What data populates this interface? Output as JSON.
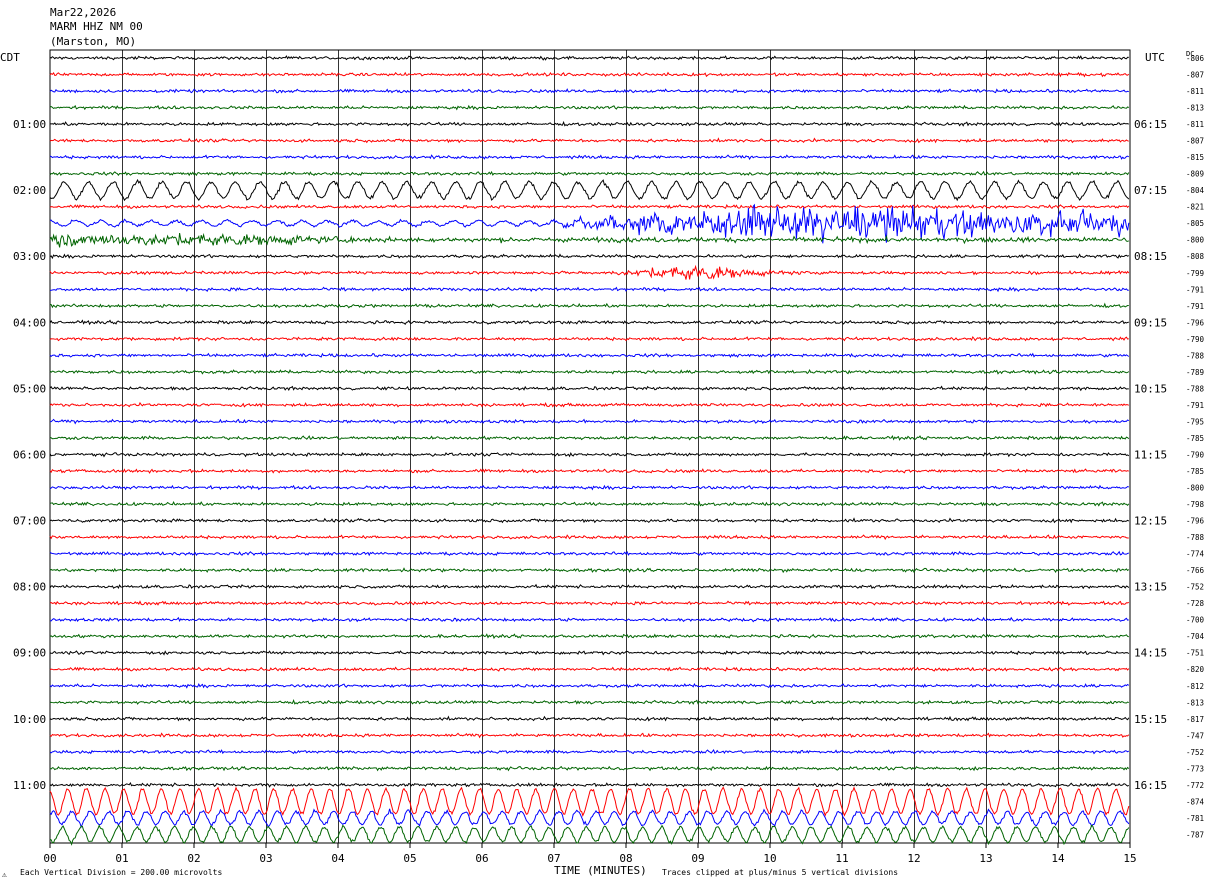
{
  "header": {
    "date": "Mar22,2026",
    "station": "MARM HHZ NM 00",
    "location": "(Marston, MO)"
  },
  "left_zone": "CDT",
  "right_zone": "UTC",
  "dc_label": "DC",
  "footer": {
    "scale_mark": "⚠",
    "scale_text": "Each Vertical Division =  200.00 microvolts",
    "xlabel": "TIME (MINUTES)",
    "clip_note": "Traces clipped at plus/minus 5 vertical divisions"
  },
  "colors": {
    "cycle": [
      "#000000",
      "#ff0000",
      "#0000ff",
      "#006400"
    ],
    "grid": "#000000",
    "background": "#ffffff"
  },
  "chart_data": {
    "type": "line",
    "title": "MARM HHZ NM 00",
    "xlabel": "TIME (MINUTES)",
    "xlim": [
      0,
      15
    ],
    "x_ticks": [
      "00",
      "01",
      "02",
      "03",
      "04",
      "05",
      "06",
      "07",
      "08",
      "09",
      "10",
      "11",
      "12",
      "13",
      "14",
      "15"
    ],
    "grid": "vertical every minute",
    "traces_per_hour": 4,
    "trace_duration_minutes": 15,
    "left_hour_labels": [
      "01:00",
      "02:00",
      "03:00",
      "04:00",
      "05:00",
      "06:00",
      "07:00",
      "08:00",
      "09:00",
      "10:00",
      "11:00"
    ],
    "right_hour_labels": [
      "06:15",
      "07:15",
      "08:15",
      "09:15",
      "10:15",
      "11:15",
      "12:15",
      "13:15",
      "14:15",
      "15:15",
      "16:15"
    ],
    "dc_offsets": [
      -806,
      -807,
      -811,
      -813,
      -811,
      -807,
      -815,
      -809,
      -804,
      -821,
      -805,
      -800,
      -808,
      -799,
      -791,
      -791,
      -796,
      -790,
      -788,
      -789,
      -788,
      -791,
      -795,
      -785,
      -790,
      -785,
      -800,
      -798,
      -796,
      -788,
      -774,
      -766,
      -752,
      -728,
      -700,
      -704,
      -751,
      -820,
      -812,
      -813,
      -817,
      -747,
      -752,
      -773,
      -772,
      -874,
      -781,
      -787
    ],
    "series": [
      {
        "trace": 8,
        "character": "long-period oscillation",
        "period_minutes": 0.34,
        "amplitude_divisions": 1.0
      },
      {
        "trace": 10,
        "character": "high-amplitude burst",
        "burst_start_minute": 6.8,
        "burst_peak_minute": 10.8,
        "amplitude_divisions": 1.5
      },
      {
        "trace": 11,
        "character": "elevated noise",
        "from_minute": 0,
        "to_minute": 3.0
      },
      {
        "trace": 13,
        "character": "local event",
        "peak_minute": 9.0
      },
      {
        "trace": 45,
        "character": "long-period oscillation",
        "period_minutes": 0.26,
        "amplitude_divisions": 1.5
      },
      {
        "trace": 46,
        "character": "long-period oscillation",
        "period_minutes": 0.26,
        "amplitude_divisions": 0.8
      },
      {
        "trace": 47,
        "character": "long-period oscillation",
        "period_minutes": 0.26,
        "amplitude_divisions": 0.9
      }
    ]
  }
}
